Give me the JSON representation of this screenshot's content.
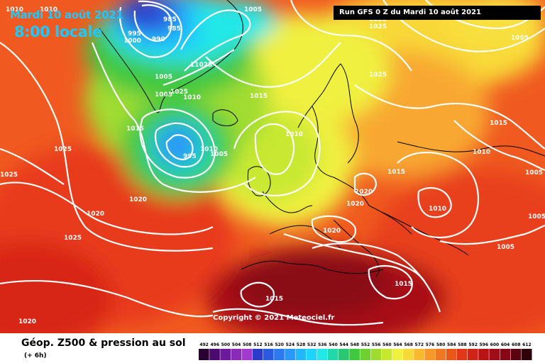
{
  "title": {
    "date": "Mardi 10 août 2021",
    "time": "8:00 locale"
  },
  "run_label": "Run GFS 0 Z du Mardi 10 août 2021",
  "copyright": "Copyright © 2021 Meteociel.fr",
  "legend": {
    "title": "Géop. Z500 & pression au sol",
    "subtitle": "(+ 6h)",
    "values": [
      "492",
      "496",
      "500",
      "504",
      "508",
      "512",
      "516",
      "520",
      "524",
      "528",
      "532",
      "536",
      "540",
      "544",
      "548",
      "552",
      "556",
      "560",
      "564",
      "568",
      "572",
      "576",
      "580",
      "584",
      "588",
      "592",
      "596",
      "600",
      "604",
      "608",
      "612"
    ],
    "colors": [
      "#2a0030",
      "#4b0a6e",
      "#6a1a9a",
      "#8a2ab8",
      "#a23ad0",
      "#2b3cc8",
      "#2a5ae0",
      "#2b7af0",
      "#2a98f8",
      "#22b8ff",
      "#1ed4ff",
      "#22e8e8",
      "#22d8a8",
      "#28c870",
      "#40c840",
      "#70d030",
      "#a0dc30",
      "#c8e830",
      "#f0f040",
      "#f8d838",
      "#f8b830",
      "#f89828",
      "#f07820",
      "#e85818",
      "#e03818",
      "#d02418",
      "#b81418",
      "#a00c18",
      "#880818",
      "#5a0410",
      "#300008"
    ]
  },
  "isobars": [
    {
      "text": "1010"
    },
    {
      "text": "1010"
    },
    {
      "text": "985"
    },
    {
      "text": "985"
    },
    {
      "text": "990"
    },
    {
      "text": "995"
    },
    {
      "text": "1000"
    },
    {
      "text": "1005"
    },
    {
      "text": "1025"
    },
    {
      "text": "1020"
    },
    {
      "text": "1005"
    },
    {
      "text": "1005"
    },
    {
      "text": "11025"
    },
    {
      "text": "1005"
    },
    {
      "text": "1025"
    },
    {
      "text": "1010"
    },
    {
      "text": "1015"
    },
    {
      "text": "1025"
    },
    {
      "text": "1015"
    },
    {
      "text": "1015"
    },
    {
      "text": "1010"
    },
    {
      "text": "995"
    },
    {
      "text": "1010"
    },
    {
      "text": "1005"
    },
    {
      "text": "1025"
    },
    {
      "text": "1025"
    },
    {
      "text": "1020"
    },
    {
      "text": "1020"
    },
    {
      "text": "1025"
    },
    {
      "text": "1015"
    },
    {
      "text": "1010"
    },
    {
      "text": "1005"
    },
    {
      "text": "1020"
    },
    {
      "text": "1020"
    },
    {
      "text": "1010"
    },
    {
      "text": "1020"
    },
    {
      "text": "1005"
    },
    {
      "text": "1020"
    },
    {
      "text": "1015"
    },
    {
      "text": "1015"
    },
    {
      "text": "1005"
    }
  ]
}
